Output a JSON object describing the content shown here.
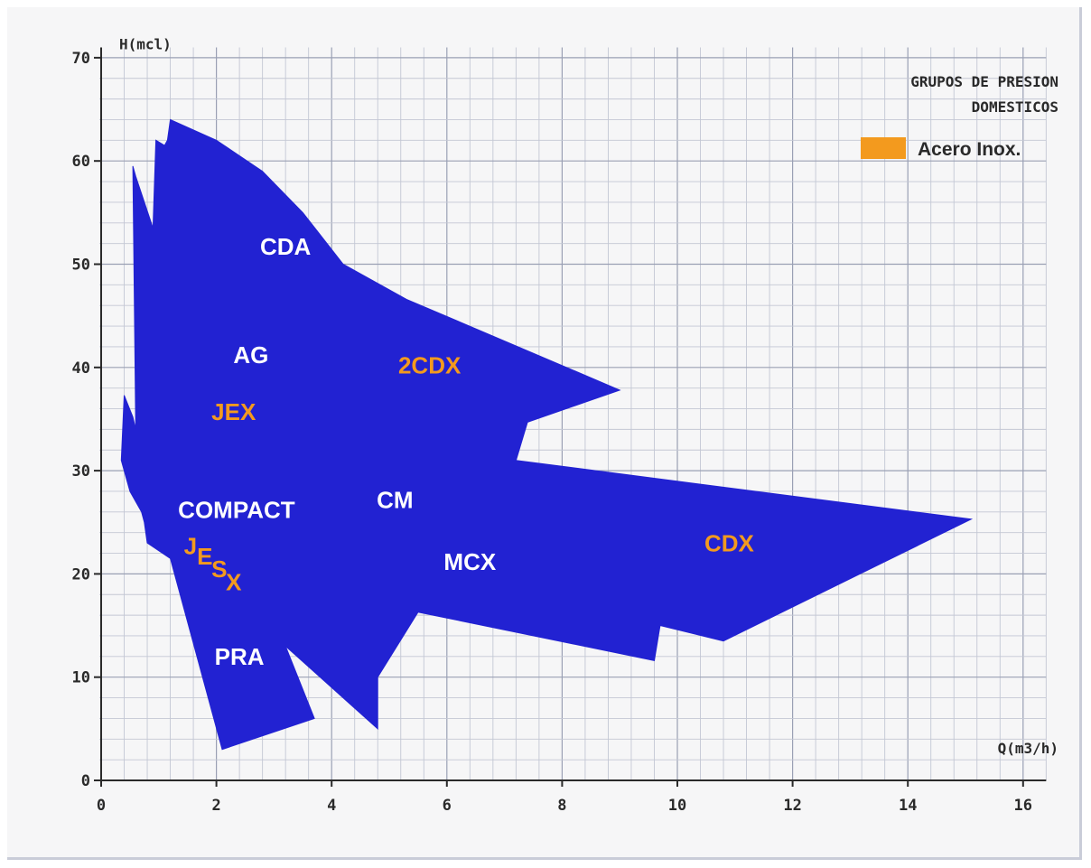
{
  "chart_data": {
    "type": "area",
    "title": [
      "GRUPOS DE PRESION",
      "DOMESTICOS"
    ],
    "xlabel": "Q(m3/h)",
    "ylabel": "H(mcl)",
    "xlim": [
      0,
      16.4
    ],
    "ylim": [
      0,
      71
    ],
    "xticks": [
      0,
      2,
      4,
      6,
      8,
      10,
      12,
      14,
      16
    ],
    "yticks": [
      0,
      10,
      20,
      30,
      40,
      50,
      60,
      70
    ],
    "grid": true,
    "legend": {
      "position": "top-right",
      "entries": [
        {
          "label": "Acero Inox.",
          "color": "#f39a1e"
        }
      ]
    },
    "area_color": "#2222d2",
    "area_outline": [
      [
        0.35,
        31
      ],
      [
        0.4,
        37.3
      ],
      [
        0.55,
        35.2
      ],
      [
        0.6,
        34
      ],
      [
        0.55,
        59.5
      ],
      [
        0.6,
        58.5
      ],
      [
        0.9,
        53.5
      ],
      [
        0.95,
        62
      ],
      [
        1.1,
        61.5
      ],
      [
        1.15,
        62
      ],
      [
        1.2,
        64
      ],
      [
        2.0,
        62
      ],
      [
        2.8,
        59
      ],
      [
        3.5,
        55
      ],
      [
        4.2,
        50
      ],
      [
        5.3,
        46.6
      ],
      [
        9.0,
        37.8
      ],
      [
        7.4,
        34.7
      ],
      [
        7.2,
        31
      ],
      [
        15.1,
        25.3
      ],
      [
        10.8,
        13.5
      ],
      [
        9.7,
        15
      ],
      [
        9.6,
        11.6
      ],
      [
        5.5,
        16.3
      ],
      [
        4.8,
        10
      ],
      [
        4.8,
        5
      ],
      [
        3.2,
        13
      ],
      [
        3.7,
        6
      ],
      [
        2.1,
        3
      ],
      [
        1.2,
        21.5
      ],
      [
        0.8,
        23
      ],
      [
        0.75,
        25
      ],
      [
        0.7,
        26
      ],
      [
        0.5,
        28
      ],
      [
        0.35,
        31
      ]
    ],
    "region_labels": [
      {
        "text": "CDA",
        "x": 3.2,
        "y": 51.5,
        "color": "#ffffff"
      },
      {
        "text": "AG",
        "x": 2.6,
        "y": 41,
        "color": "#ffffff"
      },
      {
        "text": "2CDX",
        "x": 5.7,
        "y": 40,
        "color": "#f39a1e"
      },
      {
        "text": "JEX",
        "x": 2.3,
        "y": 35.5,
        "color": "#f39a1e"
      },
      {
        "text": "COMPACT",
        "x": 2.35,
        "y": 26,
        "color": "#ffffff"
      },
      {
        "text": "CM",
        "x": 5.1,
        "y": 27,
        "color": "#ffffff"
      },
      {
        "text": "MCX",
        "x": 6.4,
        "y": 21,
        "color": "#ffffff"
      },
      {
        "text": "CDX",
        "x": 10.9,
        "y": 22.8,
        "color": "#f39a1e"
      },
      {
        "text": "PRA",
        "x": 2.4,
        "y": 11.8,
        "color": "#ffffff"
      }
    ],
    "jesx": {
      "color": "#f39a1e",
      "letters": [
        {
          "text": "J",
          "x": 1.55,
          "y": 22.5
        },
        {
          "text": "E",
          "x": 1.8,
          "y": 21.5
        },
        {
          "text": "S",
          "x": 2.05,
          "y": 20.3
        },
        {
          "text": "X",
          "x": 2.3,
          "y": 19.0
        }
      ]
    }
  }
}
